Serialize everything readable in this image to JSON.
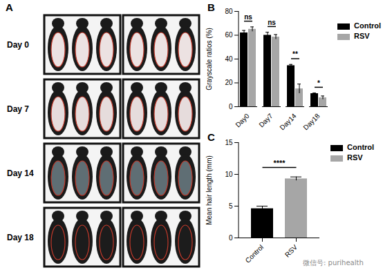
{
  "panel_a": {
    "label": "A",
    "rows": [
      "Day 0",
      "Day 7",
      "Day 14",
      "Day 18"
    ]
  },
  "chart_data": [
    {
      "type": "bar",
      "title": "B",
      "categories": [
        "Day0",
        "Day7",
        "Day14",
        "Day18"
      ],
      "series": [
        {
          "name": "Control",
          "color": "#000000",
          "values": [
            62,
            60,
            34.5,
            11
          ],
          "errors": [
            2,
            2.5,
            1,
            0.5
          ]
        },
        {
          "name": "RSV",
          "color": "#a6a6a6",
          "values": [
            65,
            58.5,
            15,
            7.5
          ],
          "errors": [
            2,
            2,
            4,
            1.5
          ]
        }
      ],
      "y_label": "Grayscale ratios (%)",
      "ylim": [
        0,
        80
      ],
      "yticks": [
        0,
        20,
        40,
        60,
        80
      ],
      "legend": "upper right",
      "annotations": [
        {
          "text": "ns",
          "category": "Day0"
        },
        {
          "text": "ns",
          "category": "Day7"
        },
        {
          "text": "**",
          "category": "Day14"
        },
        {
          "text": "*",
          "category": "Day18"
        }
      ]
    },
    {
      "type": "bar",
      "title": "C",
      "categories": [
        "Control",
        "RSV"
      ],
      "values": [
        4.6,
        9.3
      ],
      "errors": [
        0.4,
        0.3
      ],
      "colors": [
        "#000000",
        "#a6a6a6"
      ],
      "y_label": "Mean hair length (mm)",
      "ylim": [
        0,
        15
      ],
      "yticks": [
        0,
        5,
        10,
        15
      ],
      "legend": "upper right",
      "annotations": [
        {
          "text": "****"
        }
      ]
    }
  ],
  "watermark": "微信号: purihealth"
}
